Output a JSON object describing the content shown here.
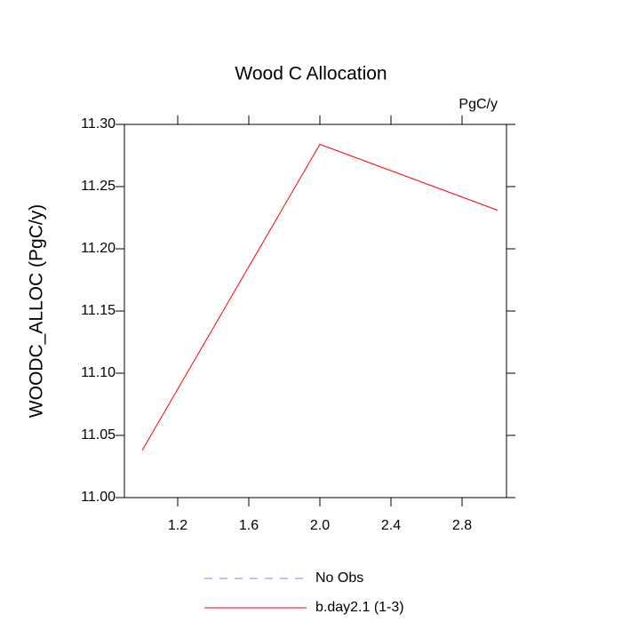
{
  "chart_data": {
    "type": "line",
    "title": "Wood C Allocation",
    "units_note": "PgC/y",
    "y_label": "WOODC_ALLOC  (PgC/y)",
    "x": [
      1,
      2,
      3
    ],
    "series": [
      {
        "name": "No Obs",
        "color": "#8080ff",
        "dashed": true,
        "values": [
          null,
          null,
          null
        ]
      },
      {
        "name": "b.day2.1 (1-3)",
        "color": "#ff0000",
        "dashed": false,
        "values": [
          11.038,
          11.284,
          11.231
        ]
      }
    ],
    "xlim": [
      0.9,
      3.05
    ],
    "xticks": [
      1.2,
      1.6,
      {
        "value": 2,
        "label": "2.0"
      },
      2.4,
      2.8
    ],
    "ylim": [
      11.0,
      11.3
    ],
    "yticks": [
      {
        "value": 11.0,
        "label": "11.00"
      },
      {
        "value": 11.05,
        "label": "11.05"
      },
      {
        "value": 11.1,
        "label": "11.10"
      },
      {
        "value": 11.15,
        "label": "11.15"
      },
      {
        "value": 11.2,
        "label": "11.20"
      },
      {
        "value": 11.25,
        "label": "11.25"
      },
      {
        "value": 11.3,
        "label": "11.30"
      }
    ]
  }
}
